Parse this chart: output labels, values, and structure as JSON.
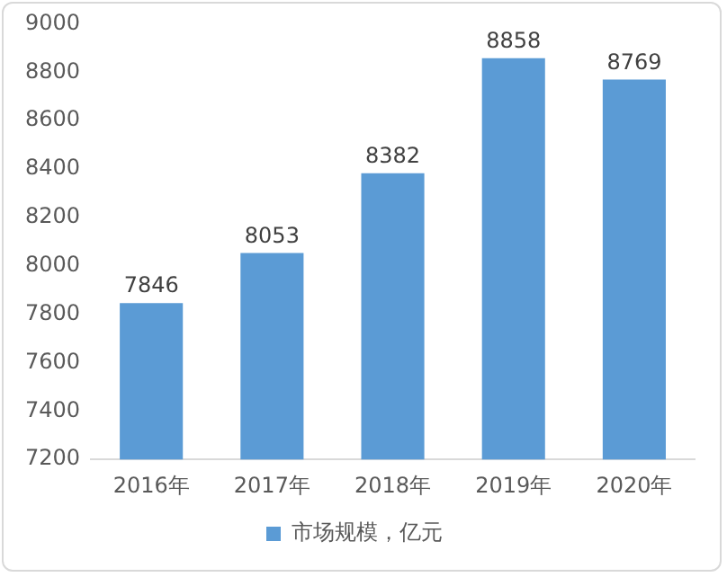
{
  "chart_data": {
    "type": "bar",
    "categories": [
      "2016年",
      "2017年",
      "2018年",
      "2019年",
      "2020年"
    ],
    "series": [
      {
        "name": "市场规模，亿元",
        "color": "#5b9bd5",
        "values": [
          7846,
          8053,
          8382,
          8858,
          8769
        ]
      }
    ],
    "ylim": [
      7200,
      9000
    ],
    "yticks": [
      7200,
      7400,
      7600,
      7800,
      8000,
      8200,
      8400,
      8600,
      8800,
      9000
    ],
    "grid": false,
    "legend": "bottom",
    "data_labels": true
  }
}
